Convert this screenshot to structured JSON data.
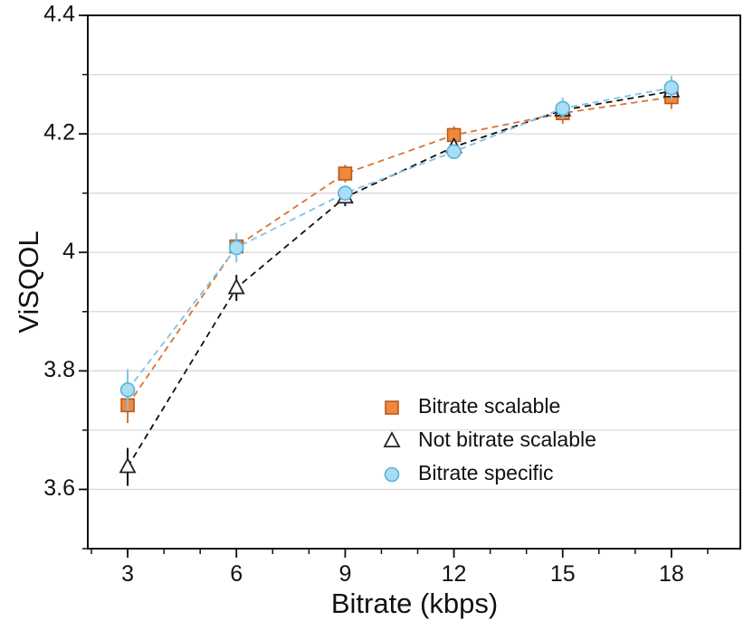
{
  "chart_data": {
    "type": "line",
    "title": "",
    "xlabel": "Bitrate (kbps)",
    "ylabel": "ViSQOL",
    "x": [
      3,
      6,
      9,
      12,
      15,
      18
    ],
    "xlim": [
      1.9,
      19.9
    ],
    "ylim": [
      3.5,
      4.4
    ],
    "xticks": [
      3,
      6,
      9,
      12,
      15,
      18
    ],
    "xtick_labels": [
      "3",
      "6",
      "9",
      "12",
      "15",
      "18"
    ],
    "yticks": [
      3.6,
      3.8,
      4.0,
      4.2,
      4.4
    ],
    "ytick_labels": [
      "3.6",
      "3.8",
      "4",
      "4.2",
      "4.4"
    ],
    "grid": true,
    "legend_position": "bottom-right",
    "series": [
      {
        "name": "Bitrate scalable",
        "marker": "square",
        "color": "#F0883E",
        "edge_color": "#B85A1A",
        "line_color": "#D9732E",
        "values": [
          3.742,
          4.01,
          4.133,
          4.198,
          4.235,
          4.262
        ],
        "errors": [
          0.03,
          0.015,
          0.015,
          0.015,
          0.018,
          0.02
        ]
      },
      {
        "name": "Not bitrate scalable",
        "marker": "triangle",
        "color": "#FFFFFF",
        "edge_color": "#222222",
        "line_color": "#111111",
        "values": [
          3.638,
          3.94,
          4.093,
          4.178,
          4.24,
          4.272
        ],
        "errors": [
          0.032,
          0.022,
          0.015,
          0.012,
          0.012,
          0.012
        ]
      },
      {
        "name": "Bitrate specific",
        "marker": "circle",
        "color": "#A8DDF2",
        "edge_color": "#5AB2DC",
        "line_color": "#7EC4E6",
        "values": [
          3.768,
          4.008,
          4.1,
          4.17,
          4.243,
          4.278
        ],
        "errors": [
          0.035,
          0.025,
          0.012,
          0.012,
          0.018,
          0.02
        ]
      }
    ]
  }
}
